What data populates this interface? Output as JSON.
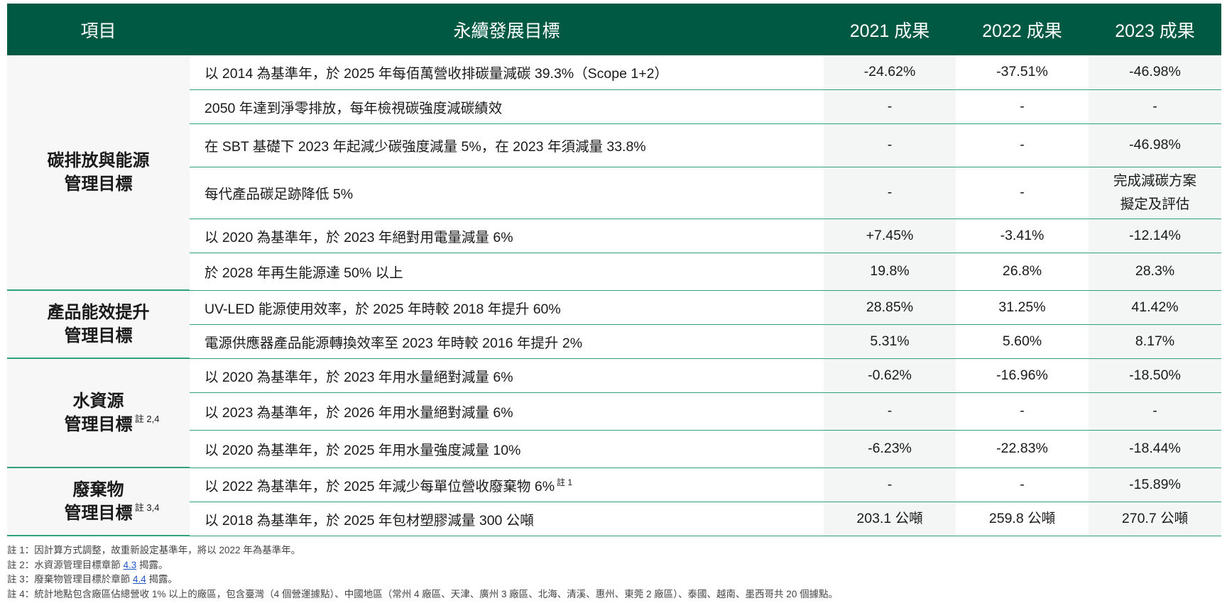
{
  "header": {
    "col_item": "項目",
    "col_goal": "永續發展目標",
    "col_2021": "2021 成果",
    "col_2022": "2022 成果",
    "col_2023": "2023 成果"
  },
  "categories": {
    "carbon": {
      "line1": "碳排放與能源",
      "line2": "管理目標"
    },
    "product": {
      "line1": "產品能效提升",
      "line2": "管理目標"
    },
    "water": {
      "line1": "水資源",
      "line2": "管理目標",
      "note": "註 2,4"
    },
    "waste": {
      "line1": "廢棄物",
      "line2": "管理目標",
      "note": "註 3,4"
    }
  },
  "rows": [
    {
      "goal": "以 2014 為基準年，於 2025 年每佰萬營收排碳量減碳 39.3%（Scope 1+2）",
      "y2021": "-24.62%",
      "y2022": "-37.51%",
      "y2023": "-46.98%"
    },
    {
      "goal": "2050 年達到淨零排放，每年檢視碳強度減碳績效",
      "y2021": "-",
      "y2022": "-",
      "y2023": "-"
    },
    {
      "goal": "在 SBT 基礎下 2023 年起減少碳強度減量 5%，在 2023 年須減量 33.8%",
      "y2021": "-",
      "y2022": "-",
      "y2023": "-46.98%"
    },
    {
      "goal": "每代產品碳足跡降低 5%",
      "y2021": "-",
      "y2022": "-",
      "y2023_line1": "完成減碳方案",
      "y2023_line2": "擬定及評估"
    },
    {
      "goal": "以 2020 為基準年，於 2023 年絕對用電量減量 6%",
      "y2021": "+7.45%",
      "y2022": "-3.41%",
      "y2023": "-12.14%"
    },
    {
      "goal": "於 2028 年再生能源達 50% 以上",
      "y2021": "19.8%",
      "y2022": "26.8%",
      "y2023": "28.3%"
    },
    {
      "goal": "UV-LED 能源使用效率，於 2025 年時較 2018 年提升 60%",
      "y2021": "28.85%",
      "y2022": "31.25%",
      "y2023": "41.42%"
    },
    {
      "goal": "電源供應器產品能源轉換效率至 2023 年時較 2016 年提升 2%",
      "y2021": "5.31%",
      "y2022": "5.60%",
      "y2023": "8.17%"
    },
    {
      "goal": "以 2020 為基準年，於 2023 年用水量絕對減量 6%",
      "y2021": "-0.62%",
      "y2022": "-16.96%",
      "y2023": "-18.50%"
    },
    {
      "goal": "以 2023 為基準年，於 2026 年用水量絕對減量 6%",
      "y2021": "-",
      "y2022": "-",
      "y2023": "-"
    },
    {
      "goal": "以 2020 為基準年，於 2025 年用水量強度減量 10%",
      "y2021": "-6.23%",
      "y2022": "-22.83%",
      "y2023": "-18.44%"
    },
    {
      "goal": "以 2022 為基準年，於 2025 年減少每單位營收廢棄物 6%",
      "goal_note": "註 1",
      "y2021": "-",
      "y2022": "-",
      "y2023": "-15.89%"
    },
    {
      "goal": "以 2018 為基準年，於 2025 年包材塑膠減量 300 公噸",
      "y2021": "203.1 公噸",
      "y2022": "259.8 公噸",
      "y2023": "270.7 公噸"
    }
  ],
  "notes": {
    "n1": "註 1：因計算方式調整，故重新設定基準年，將以 2022 年為基準年。",
    "n2_pre": "註 2：水資源管理目標章節 ",
    "n2_link": "4.3",
    "n2_post": " 揭露。",
    "n3_pre": "註 3：廢棄物管理目標於章節 ",
    "n3_link": "4.4",
    "n3_post": " 揭露。",
    "n4": "註 4：統計地點包含廠區佔總營收 1% 以上的廠區，包含臺灣（4 個營運據點）、中國地區（常州 4 廠區、天津、廣州 3 廠區、北海、清溪、惠州、東莞 2 廠區）、泰國、越南、墨西哥共 20 個據點。"
  },
  "colors": {
    "header_bg": "#005a43",
    "rule": "#2ea27a",
    "link": "#2257c9"
  }
}
